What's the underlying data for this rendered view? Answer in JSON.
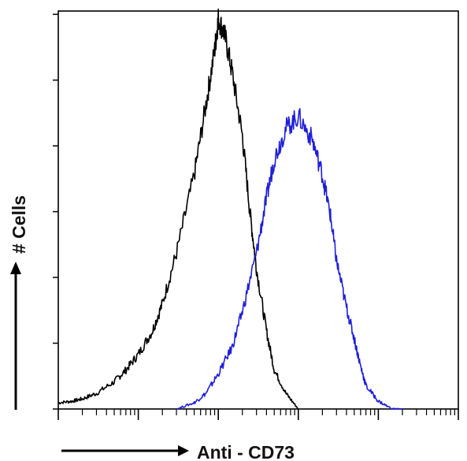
{
  "chart_data": {
    "type": "line",
    "title": "",
    "xlabel": "Anti - CD73",
    "ylabel": "# Cells",
    "x_scale": "log",
    "xlim": [
      1,
      100000
    ],
    "ylim": [
      0,
      5
    ],
    "grid": false,
    "legend": "none",
    "series": [
      {
        "color": "#000000",
        "x": [
          1,
          1.5,
          2,
          3,
          5,
          7,
          10,
          15,
          20,
          30,
          50,
          70,
          90,
          100,
          120,
          150,
          200,
          250,
          300,
          400,
          500,
          700,
          1000
        ],
        "values": [
          0.08,
          0.1,
          0.13,
          0.2,
          0.35,
          0.5,
          0.7,
          1.0,
          1.35,
          2.0,
          3.0,
          3.9,
          4.6,
          5.0,
          4.8,
          4.3,
          3.5,
          2.5,
          1.8,
          1.0,
          0.5,
          0.2,
          0.0
        ]
      },
      {
        "color": "#1f1fd8",
        "x": [
          30,
          50,
          70,
          100,
          150,
          200,
          300,
          400,
          500,
          700,
          1000,
          1500,
          2000,
          2500,
          3000,
          4000,
          5000,
          6000,
          7000,
          10000,
          15000,
          20000
        ],
        "values": [
          0.0,
          0.08,
          0.2,
          0.45,
          0.8,
          1.25,
          2.0,
          2.7,
          3.2,
          3.6,
          3.75,
          3.45,
          3.0,
          2.5,
          1.9,
          1.3,
          0.9,
          0.55,
          0.3,
          0.1,
          0.0,
          0.0
        ]
      }
    ]
  }
}
